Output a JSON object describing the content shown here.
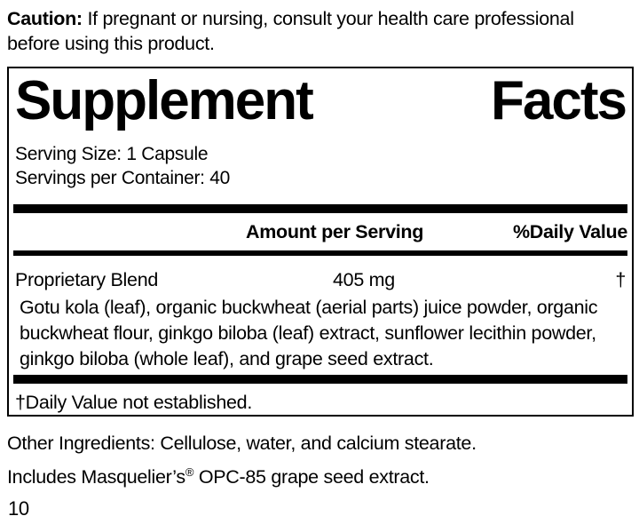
{
  "caution": {
    "label": "Caution:",
    "line1": "If pregnant or nursing, consult your health care professional",
    "line2": "before using this product."
  },
  "panel": {
    "title_words": [
      "Supplement",
      "Facts"
    ],
    "serving_size": "Serving Size: 1 Capsule",
    "servings_per_container": "Servings per Container: 40",
    "columns": {
      "amount": "Amount per Serving",
      "daily_value": "%Daily Value"
    },
    "rows": [
      {
        "name": "Proprietary Blend",
        "amount": "405 mg",
        "daily_value": "†"
      }
    ],
    "blend_description_lines": [
      "Gotu kola (leaf), organic buckwheat (aerial parts) juice powder, organic",
      "buckwheat flour, ginkgo biloba (leaf) extract, sunflower lecithin powder,",
      "ginkgo biloba (whole leaf), and grape seed extract."
    ],
    "footnote": "†Daily Value not established."
  },
  "other_ingredients": "Other Ingredients: Cellulose, water, and calcium stearate.",
  "includes": {
    "prefix": "Includes Masquelier’s",
    "symbol": "®",
    "suffix": " OPC-85 grape seed extract."
  },
  "page_number": "10",
  "colors": {
    "ink": "#000000",
    "background": "#ffffff"
  }
}
